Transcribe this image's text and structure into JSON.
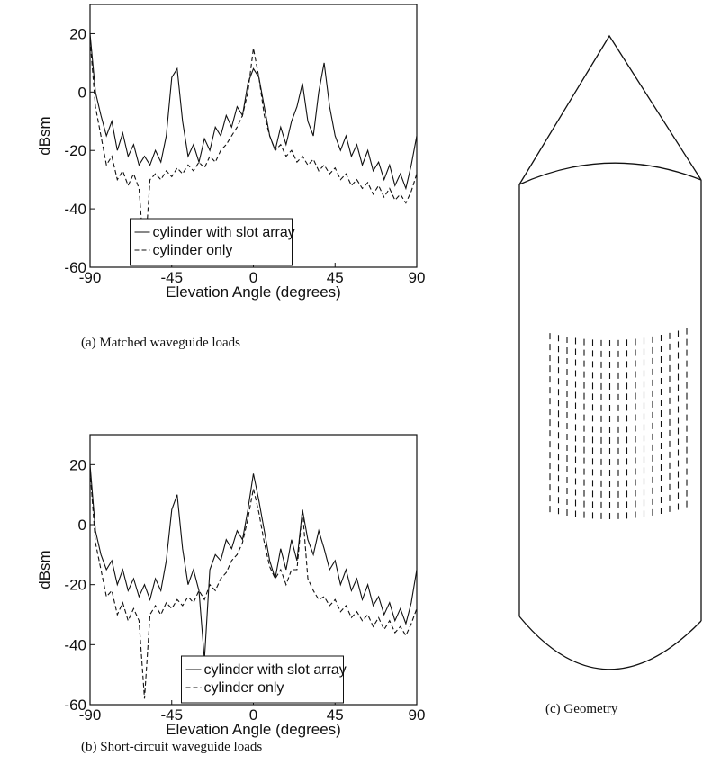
{
  "chart_data": [
    {
      "type": "line",
      "caption": "(a) Matched waveguide loads",
      "ylabel": "dBsm",
      "xlabel": "Elevation Angle (degrees)",
      "x": [
        -90,
        -87,
        -84,
        -81,
        -78,
        -75,
        -72,
        -69,
        -66,
        -63,
        -60,
        -57,
        -54,
        -51,
        -48,
        -45,
        -42,
        -39,
        -36,
        -33,
        -30,
        -27,
        -24,
        -21,
        -18,
        -15,
        -12,
        -9,
        -6,
        -3,
        0,
        3,
        6,
        9,
        12,
        15,
        18,
        21,
        24,
        27,
        30,
        33,
        36,
        39,
        42,
        45,
        48,
        51,
        54,
        57,
        60,
        63,
        66,
        69,
        72,
        75,
        78,
        81,
        84,
        87,
        90
      ],
      "series": [
        {
          "name": "cylinder with slot array",
          "color": "#111111",
          "dash": "solid",
          "values": [
            20,
            0,
            -8,
            -15,
            -10,
            -20,
            -14,
            -22,
            -18,
            -25,
            -22,
            -25,
            -20,
            -24,
            -15,
            5,
            8,
            -10,
            -22,
            -18,
            -24,
            -16,
            -20,
            -12,
            -15,
            -8,
            -12,
            -5,
            -8,
            3,
            8,
            5,
            -5,
            -15,
            -20,
            -12,
            -18,
            -10,
            -5,
            3,
            -10,
            -15,
            0,
            10,
            -5,
            -15,
            -20,
            -15,
            -22,
            -18,
            -25,
            -20,
            -27,
            -24,
            -30,
            -25,
            -32,
            -28,
            -33,
            -25,
            -15
          ]
        },
        {
          "name": "cylinder only",
          "color": "#111111",
          "dash": "dashed",
          "values": [
            18,
            -5,
            -15,
            -25,
            -22,
            -30,
            -27,
            -32,
            -28,
            -33,
            -58,
            -30,
            -28,
            -30,
            -27,
            -29,
            -26,
            -28,
            -25,
            -27,
            -24,
            -26,
            -22,
            -24,
            -20,
            -18,
            -15,
            -12,
            -8,
            0,
            15,
            5,
            -8,
            -15,
            -20,
            -18,
            -22,
            -20,
            -24,
            -22,
            -25,
            -23,
            -27,
            -25,
            -28,
            -26,
            -30,
            -28,
            -32,
            -30,
            -33,
            -31,
            -35,
            -32,
            -36,
            -33,
            -37,
            -35,
            -38,
            -34,
            -28
          ]
        }
      ],
      "xlim": [
        -90,
        90
      ],
      "xticks": [
        -90,
        -45,
        0,
        45,
        90
      ],
      "ylim": [
        -60,
        30
      ],
      "yticks": [
        -60,
        -40,
        -20,
        0,
        20
      ],
      "legend": "lower center"
    },
    {
      "type": "line",
      "caption": "(b) Short-circuit waveguide loads",
      "ylabel": "dBsm",
      "xlabel": "Elevation Angle (degrees)",
      "x": [
        -90,
        -87,
        -84,
        -81,
        -78,
        -75,
        -72,
        -69,
        -66,
        -63,
        -60,
        -57,
        -54,
        -51,
        -48,
        -45,
        -42,
        -39,
        -36,
        -33,
        -30,
        -27,
        -24,
        -21,
        -18,
        -15,
        -12,
        -9,
        -6,
        -3,
        0,
        3,
        6,
        9,
        12,
        15,
        18,
        21,
        24,
        27,
        30,
        33,
        36,
        39,
        42,
        45,
        48,
        51,
        54,
        57,
        60,
        63,
        66,
        69,
        72,
        75,
        78,
        81,
        84,
        87,
        90
      ],
      "series": [
        {
          "name": "cylinder with slot array",
          "color": "#111111",
          "dash": "solid",
          "values": [
            20,
            -2,
            -10,
            -15,
            -12,
            -20,
            -15,
            -22,
            -18,
            -24,
            -20,
            -25,
            -18,
            -22,
            -12,
            5,
            10,
            -8,
            -20,
            -15,
            -22,
            -45,
            -15,
            -10,
            -12,
            -5,
            -8,
            -2,
            -5,
            5,
            17,
            8,
            -2,
            -12,
            -18,
            -8,
            -15,
            -5,
            -12,
            5,
            -5,
            -10,
            -2,
            -8,
            -15,
            -12,
            -20,
            -15,
            -22,
            -18,
            -25,
            -20,
            -27,
            -24,
            -30,
            -26,
            -32,
            -28,
            -33,
            -26,
            -15
          ]
        },
        {
          "name": "cylinder only",
          "color": "#111111",
          "dash": "dashed",
          "values": [
            18,
            -6,
            -15,
            -24,
            -22,
            -30,
            -26,
            -32,
            -28,
            -32,
            -58,
            -30,
            -27,
            -30,
            -26,
            -28,
            -25,
            -27,
            -24,
            -26,
            -22,
            -25,
            -20,
            -22,
            -18,
            -16,
            -12,
            -10,
            -6,
            2,
            12,
            4,
            -6,
            -14,
            -18,
            -15,
            -20,
            -15,
            -15,
            5,
            -18,
            -22,
            -25,
            -24,
            -27,
            -25,
            -29,
            -27,
            -31,
            -29,
            -32,
            -30,
            -34,
            -31,
            -35,
            -32,
            -36,
            -34,
            -37,
            -33,
            -28
          ]
        }
      ],
      "xlim": [
        -90,
        90
      ],
      "xticks": [
        -90,
        -45,
        0,
        45,
        90
      ],
      "ylim": [
        -60,
        30
      ],
      "yticks": [
        -60,
        -40,
        -20,
        0,
        20
      ],
      "legend": "lower center"
    }
  ],
  "geometry": {
    "caption": "(c) Geometry"
  }
}
